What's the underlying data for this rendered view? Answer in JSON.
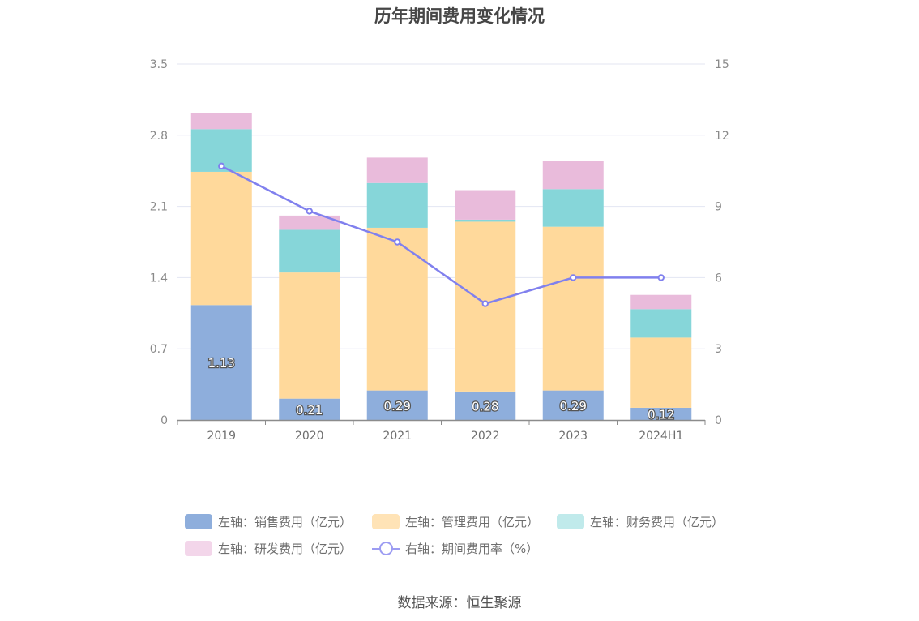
{
  "chart_data": {
    "type": "bar",
    "stacked": true,
    "title": "历年期间费用变化情况",
    "categories": [
      "2019",
      "2020",
      "2021",
      "2022",
      "2023",
      "2024H1"
    ],
    "series": [
      {
        "name": "左轴：销售费用（亿元）",
        "axis": "left",
        "type": "bar",
        "color": "#8eaedc",
        "values": [
          1.13,
          0.21,
          0.29,
          0.28,
          0.29,
          0.12
        ],
        "labels": [
          "1.13",
          "0.21",
          "0.29",
          "0.28",
          "0.29",
          "0.12"
        ]
      },
      {
        "name": "左轴：管理费用（亿元）",
        "axis": "left",
        "type": "bar",
        "color": "#ffd99b",
        "values": [
          1.31,
          1.24,
          1.6,
          1.67,
          1.61,
          0.69
        ]
      },
      {
        "name": "左轴：财务费用（亿元）",
        "axis": "left",
        "type": "bar",
        "color": "#86d6d9",
        "values": [
          0.42,
          0.42,
          0.44,
          0.02,
          0.37,
          0.28
        ]
      },
      {
        "name": "左轴：研发费用（亿元）",
        "axis": "left",
        "type": "bar",
        "color": "#e9bbdb",
        "values": [
          0.16,
          0.14,
          0.25,
          0.29,
          0.28,
          0.14
        ]
      },
      {
        "name": "右轴：期间费用率（%）",
        "axis": "right",
        "type": "line",
        "color": "#8080ee",
        "values": [
          10.7,
          8.8,
          7.5,
          4.9,
          6.0,
          6.0
        ]
      }
    ],
    "y_left": {
      "ylim": [
        0,
        3.5
      ],
      "ticks": [
        "0",
        "0.7",
        "1.4",
        "2.1",
        "2.8",
        "3.5"
      ]
    },
    "y_right": {
      "ylim": [
        0,
        15
      ],
      "ticks": [
        "0",
        "3",
        "6",
        "9",
        "12",
        "15"
      ]
    },
    "legend_position": "bottom",
    "grid": true
  },
  "legend_colors": {
    "sales": "#8eaedc",
    "admin": "#ffe3b6",
    "finance": "#c0eaeb",
    "rd": "#f3d6ea",
    "rate": "#9c9cf2"
  },
  "source": "数据来源：恒生聚源"
}
